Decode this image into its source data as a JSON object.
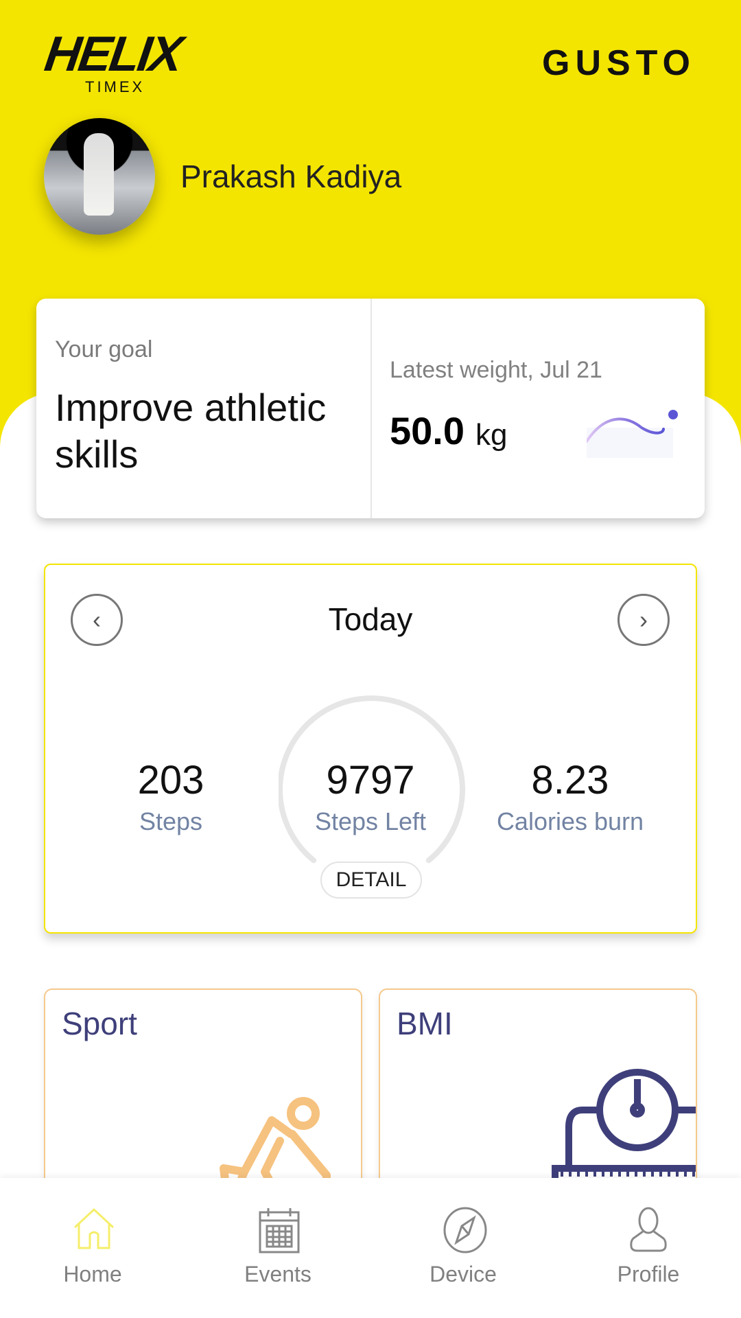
{
  "header": {
    "brand_left": "HELIX",
    "brand_left_sub": "TIMEX",
    "brand_right": "GUSTO",
    "user_name": "Prakash Kadiya"
  },
  "goal": {
    "label": "Your goal",
    "value": "Improve athletic skills"
  },
  "weight": {
    "label": "Latest weight, Jul 21",
    "value": "50.0",
    "unit": "kg",
    "trend_color": "#5b55d6"
  },
  "today": {
    "title": "Today",
    "prev_icon": "chevron-left-icon",
    "next_icon": "chevron-right-icon",
    "steps": {
      "value": "203",
      "label": "Steps"
    },
    "steps_left": {
      "value": "9797",
      "label": "Steps Left"
    },
    "calories": {
      "value": "8.23",
      "label": "Calories burn"
    },
    "detail_label": "DETAIL"
  },
  "tiles": [
    {
      "title": "Sport",
      "icon": "cyclist-icon",
      "color": "#f6c27f"
    },
    {
      "title": "BMI",
      "icon": "scale-icon",
      "color": "#3e3f7a"
    }
  ],
  "nav": [
    {
      "label": "Home",
      "icon": "home-icon",
      "active": true
    },
    {
      "label": "Events",
      "icon": "calendar-icon"
    },
    {
      "label": "Device",
      "icon": "compass-icon"
    },
    {
      "label": "Profile",
      "icon": "person-icon"
    }
  ],
  "colors": {
    "brand_yellow": "#F4E500",
    "label_blue": "#7283a3"
  }
}
